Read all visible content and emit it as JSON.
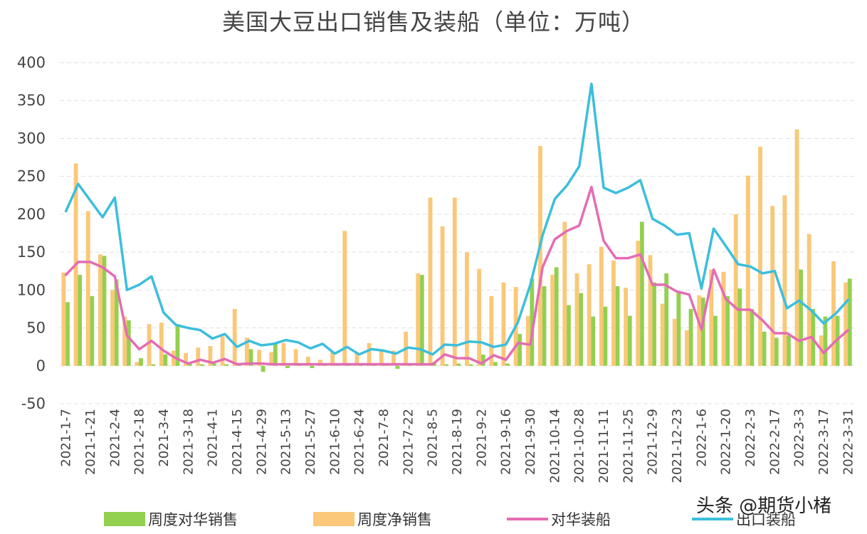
{
  "title": "美国大豆出口销售及装船（单位：万吨）",
  "watermark": "头条 @期货小楮",
  "colors": {
    "green": "#92d050",
    "orange": "#fac878",
    "pink": "#e46cb4",
    "cyan": "#3cbedc",
    "grid": "#e0e0e0"
  },
  "chart_data": {
    "type": "bar+line",
    "ylim": [
      -50,
      400
    ],
    "yticks": [
      -50,
      0,
      50,
      100,
      150,
      200,
      250,
      300,
      350,
      400
    ],
    "grid": "horizontal dashed",
    "legend_position": "bottom",
    "xtick_labels": [
      "2021-1-7",
      "2021-1-21",
      "2021-2-4",
      "2021-2-18",
      "2021-3-4",
      "2021-3-18",
      "2021-4-1",
      "2021-4-15",
      "2021-4-29",
      "2021-5-13",
      "2021-5-27",
      "2021-6-10",
      "2021-6-24",
      "2021-7-8",
      "2021-7-22",
      "2021-8-5",
      "2021-8-19",
      "2021-9-2",
      "2021-9-16",
      "2021-9-30",
      "2021-10-14",
      "2021-10-28",
      "2021-11-11",
      "2021-11-25",
      "2021-12-9",
      "2021-12-23",
      "2022-1-6",
      "2022-1-20",
      "2022-2-3",
      "2022-2-17",
      "2022-3-3",
      "2022-3-17",
      "2022-3-31"
    ],
    "weeks": 65,
    "series": [
      {
        "name": "周度对华销售",
        "kind": "bar",
        "color": "#92d050",
        "values": [
          84,
          120,
          92,
          145,
          114,
          60,
          10,
          2,
          15,
          55,
          5,
          2,
          3,
          2,
          3,
          22,
          -8,
          30,
          -3,
          2,
          -3,
          2,
          3,
          2,
          3,
          2,
          3,
          -4,
          2,
          120,
          5,
          2,
          3,
          2,
          15,
          5,
          3,
          42,
          115,
          105,
          130,
          80,
          96,
          65,
          78,
          105,
          66,
          190,
          110,
          122,
          96,
          75,
          90,
          66,
          92,
          102,
          75,
          45,
          37,
          40,
          127,
          75,
          65,
          66,
          115
        ]
      },
      {
        "name": "周度净销售",
        "kind": "bar",
        "color": "#fac878",
        "values": [
          123,
          267,
          204,
          147,
          100,
          65,
          5,
          55,
          57,
          20,
          17,
          24,
          26,
          39,
          75,
          37,
          21,
          18,
          30,
          22,
          12,
          8,
          18,
          178,
          18,
          30,
          22,
          20,
          45,
          122,
          222,
          184,
          222,
          150,
          128,
          92,
          110,
          104,
          66,
          290,
          120,
          190,
          122,
          134,
          157,
          139,
          103,
          165,
          146,
          82,
          62,
          47,
          93,
          127,
          124,
          200,
          251,
          289,
          211,
          225,
          312,
          174,
          40,
          138,
          110
        ]
      },
      {
        "name": "对华装船",
        "kind": "line",
        "color": "#e46cb4",
        "values": [
          120,
          137,
          137,
          130,
          118,
          40,
          22,
          33,
          20,
          10,
          3,
          8,
          4,
          9,
          2,
          3,
          3,
          2,
          2,
          2,
          2,
          2,
          2,
          2,
          2,
          2,
          2,
          2,
          2,
          2,
          2,
          15,
          10,
          10,
          3,
          14,
          8,
          30,
          28,
          130,
          167,
          178,
          185,
          236,
          165,
          142,
          142,
          147,
          107,
          107,
          98,
          94,
          48,
          127,
          88,
          74,
          74,
          60,
          43,
          43,
          33,
          38,
          17,
          33,
          47
        ]
      },
      {
        "name": "出口装船",
        "kind": "line",
        "color": "#3cbedc",
        "values": [
          204,
          240,
          218,
          196,
          222,
          100,
          107,
          118,
          70,
          54,
          50,
          47,
          36,
          42,
          25,
          33,
          27,
          29,
          34,
          31,
          23,
          29,
          16,
          25,
          15,
          22,
          20,
          16,
          24,
          22,
          15,
          28,
          27,
          32,
          31,
          25,
          28,
          58,
          107,
          172,
          220,
          238,
          263,
          372,
          235,
          228,
          235,
          245,
          194,
          185,
          173,
          175,
          102,
          181,
          158,
          134,
          131,
          122,
          125,
          76,
          86,
          73,
          56,
          69,
          87
        ]
      }
    ]
  },
  "legend": {
    "green": "周度对华销售",
    "orange": "周度净销售",
    "pink": "对华装船",
    "cyan": "出口装船"
  }
}
